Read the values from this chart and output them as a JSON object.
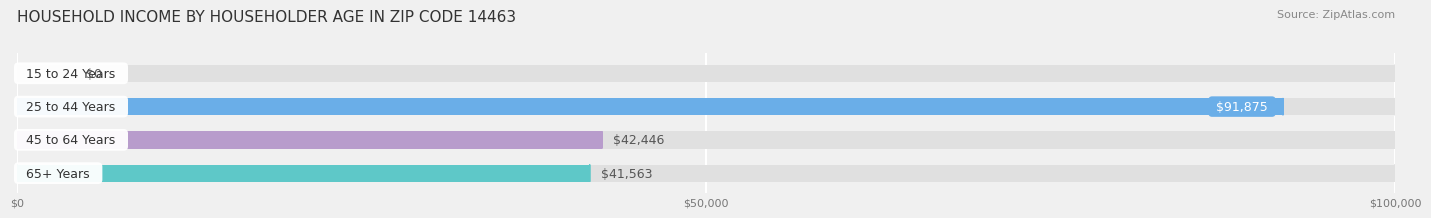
{
  "title": "HOUSEHOLD INCOME BY HOUSEHOLDER AGE IN ZIP CODE 14463",
  "source": "Source: ZipAtlas.com",
  "categories": [
    "15 to 24 Years",
    "25 to 44 Years",
    "45 to 64 Years",
    "65+ Years"
  ],
  "values": [
    0,
    91875,
    42446,
    41563
  ],
  "bar_colors": [
    "#f0a0a8",
    "#6aaee8",
    "#b89ccc",
    "#5ec8c8"
  ],
  "background_color": "#f0f0f0",
  "xlim": [
    0,
    100000
  ],
  "xticks": [
    0,
    50000,
    100000
  ],
  "xtick_labels": [
    "$0",
    "$50,000",
    "$100,000"
  ],
  "value_labels": [
    "$0",
    "$91,875",
    "$42,446",
    "$41,563"
  ],
  "title_fontsize": 11,
  "source_fontsize": 8,
  "label_fontsize": 9,
  "bar_height": 0.52,
  "fig_width": 14.06,
  "fig_height": 2.33
}
